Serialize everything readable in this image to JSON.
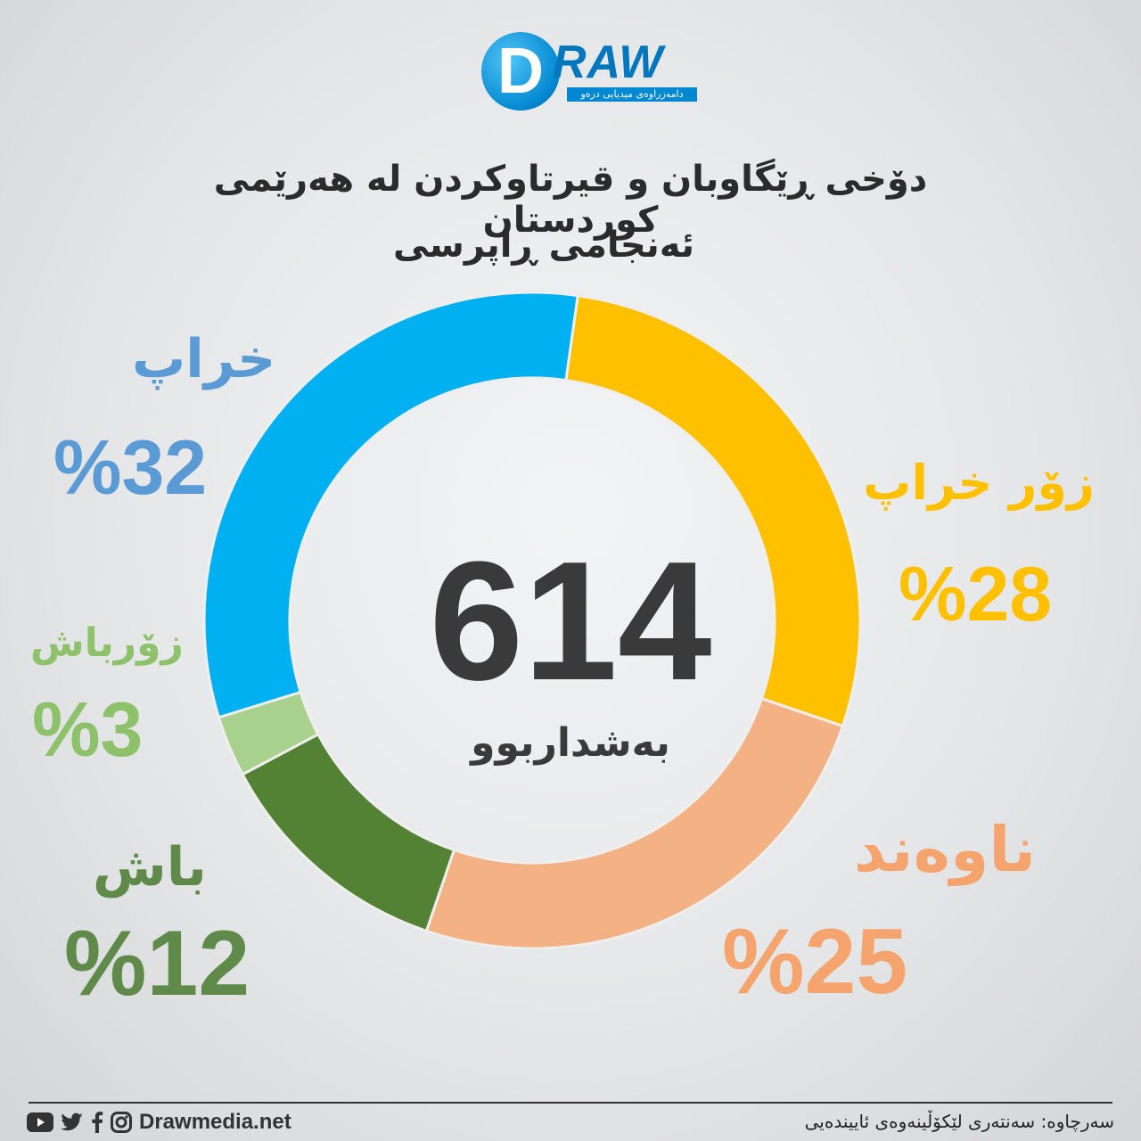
{
  "logo": {
    "mark": "D",
    "word": "RAW",
    "tagline": "دامەزراوەی میدیایی درەو"
  },
  "title": {
    "line1": "دۆخی ڕێگاوبان و قیرتاوکردن لە هەرێمی کوردستان",
    "line2": "ئەنجامی ڕاپرسی"
  },
  "center": {
    "value": "614",
    "label": "بەشداربوو"
  },
  "chart_data": {
    "type": "pie",
    "total_respondents": 614,
    "categories": [
      "زۆر خراپ",
      "ناوەند",
      "باش",
      "زۆرباش",
      "خراپ"
    ],
    "values": [
      28,
      25,
      12,
      3,
      32
    ],
    "labels": [
      "%28",
      "%25",
      "%12",
      "%3",
      "%32"
    ],
    "colors": [
      "#ffc000",
      "#f4b183",
      "#548235",
      "#a9d18e",
      "#00b0f0"
    ],
    "label_colors": [
      "#ffc000",
      "#f4a46c",
      "#5f8a4a",
      "#8dc16a",
      "#5b9bd5"
    ]
  },
  "footer": {
    "site": "Drawmedia.net",
    "source": "سەرچاوە: سەنتەری لێکۆڵینەوەی ئاییندەیی"
  },
  "icons": [
    "youtube-icon",
    "twitter-icon",
    "facebook-icon",
    "instagram-icon"
  ]
}
